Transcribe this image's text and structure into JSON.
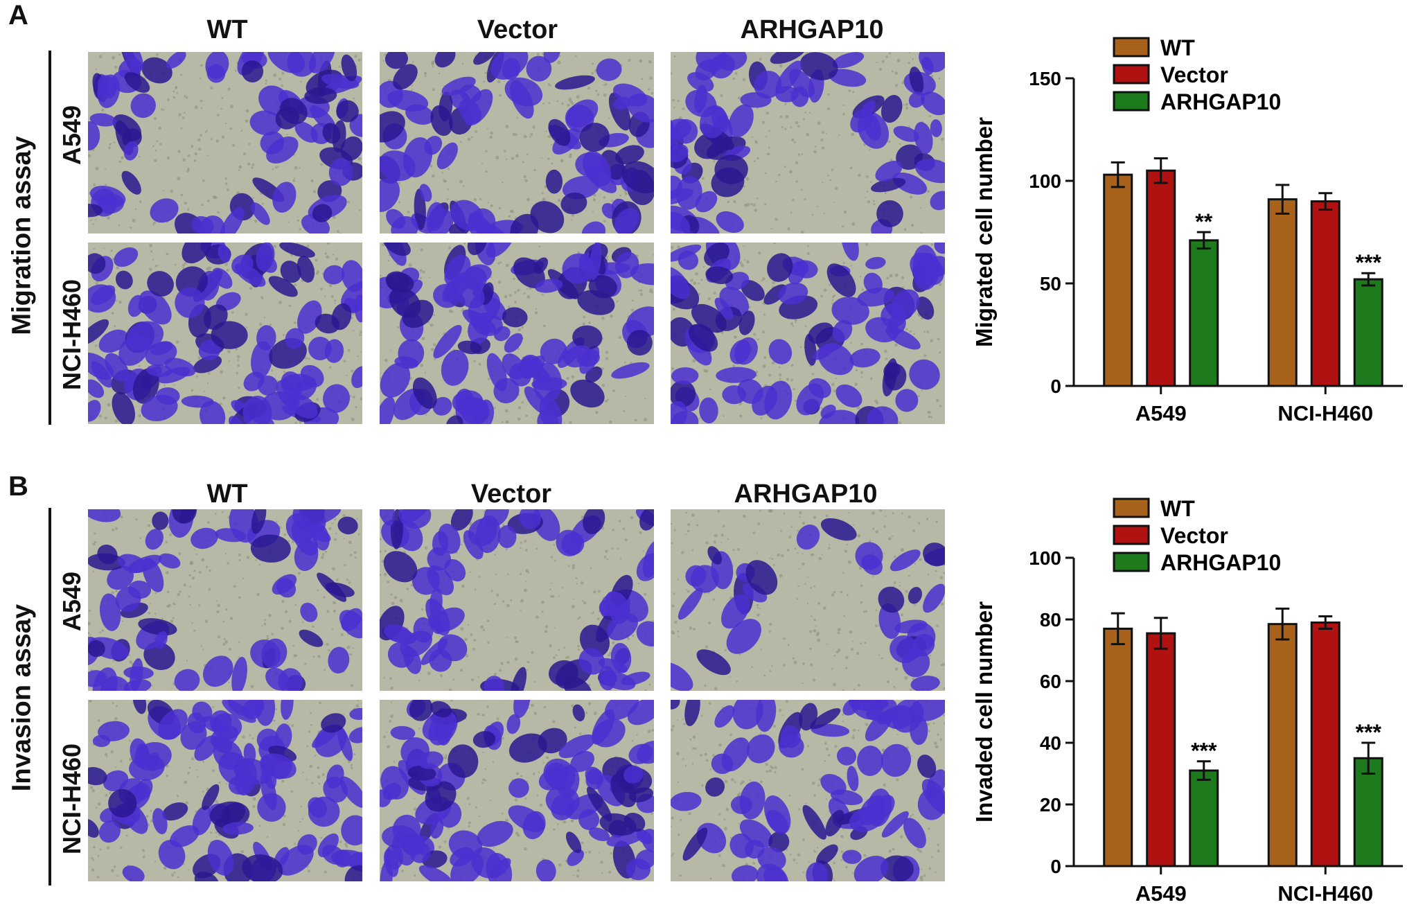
{
  "panels": [
    {
      "letter": "A",
      "side_label": "Migration assay",
      "columns": [
        "WT",
        "Vector",
        "ARHGAP10"
      ],
      "rows": [
        "A549",
        "NCI-H460"
      ]
    },
    {
      "letter": "B",
      "side_label": "Invasion assay",
      "columns": [
        "WT",
        "Vector",
        "ARHGAP10"
      ],
      "rows": [
        "A549",
        "NCI-H460"
      ]
    }
  ],
  "colors": {
    "WT": "#a8621c",
    "Vector": "#b01212",
    "ARHGAP10": "#1d7a1d",
    "stain": "#4b2fd0",
    "stain_dark": "#2a1790",
    "background_field": "#b7b8a6"
  },
  "chart_data": [
    {
      "type": "bar",
      "ylabel": "Migrated cell number",
      "xlabel": "",
      "categories": [
        "A549",
        "NCI-H460"
      ],
      "ylim": [
        0,
        150
      ],
      "yticks": [
        0,
        50,
        100,
        150
      ],
      "legend": "top",
      "series": [
        {
          "name": "WT",
          "values": [
            103,
            91
          ],
          "errors": [
            6,
            7
          ]
        },
        {
          "name": "Vector",
          "values": [
            105,
            90
          ],
          "errors": [
            6,
            4
          ]
        },
        {
          "name": "ARHGAP10",
          "values": [
            71,
            52
          ],
          "errors": [
            4,
            3
          ]
        }
      ],
      "annotations": [
        {
          "series": "ARHGAP10",
          "category": "A549",
          "text": "**"
        },
        {
          "series": "ARHGAP10",
          "category": "NCI-H460",
          "text": "***"
        }
      ]
    },
    {
      "type": "bar",
      "ylabel": "Invaded cell number",
      "xlabel": "",
      "categories": [
        "A549",
        "NCI-H460"
      ],
      "ylim": [
        0,
        100
      ],
      "yticks": [
        0,
        20,
        40,
        60,
        80,
        100
      ],
      "legend": "top",
      "series": [
        {
          "name": "WT",
          "values": [
            77,
            78.5
          ],
          "errors": [
            5,
            5
          ]
        },
        {
          "name": "Vector",
          "values": [
            75.5,
            79
          ],
          "errors": [
            5,
            2
          ]
        },
        {
          "name": "ARHGAP10",
          "values": [
            31,
            35
          ],
          "errors": [
            3,
            5
          ]
        }
      ],
      "annotations": [
        {
          "series": "ARHGAP10",
          "category": "A549",
          "text": "***"
        },
        {
          "series": "ARHGAP10",
          "category": "NCI-H460",
          "text": "***"
        }
      ]
    }
  ]
}
